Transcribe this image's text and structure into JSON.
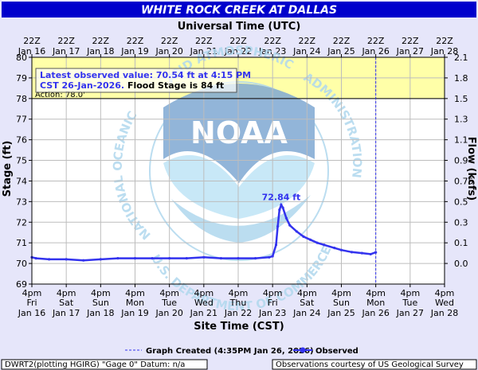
{
  "colors": {
    "background": "#e6e6fa",
    "plot_bg": "#ffffff",
    "flood_zone": "#ffffa8",
    "title_bar": "#0000cc",
    "series": "#3333ee",
    "grid": "#bdbdbd",
    "watermark": "#b0d8ee"
  },
  "watermark": {
    "logo_text": "NOAA",
    "arc_left": "NATIONAL OCEANIC",
    "arc_top": "AND ATMOSPHERIC",
    "arc_right": "ADMINISTRATION",
    "arc_bottom": "U.S. DEPARTMENT OF COMMERCE"
  },
  "chart_data": {
    "type": "line",
    "title": "WHITE ROCK CREEK AT DALLAS",
    "top_axis_title": "Universal Time (UTC)",
    "bottom_axis_title": "Site Time (CST)",
    "ylabel": "Stage (ft)",
    "ylabel_right": "Flow (kcfs)",
    "ylim": [
      69,
      80
    ],
    "y_ticks": [
      69,
      70,
      71,
      72,
      73,
      74,
      75,
      76,
      77,
      78,
      79,
      80
    ],
    "y_right_ticks": [
      {
        "stage": 70,
        "label": "0.0"
      },
      {
        "stage": 71,
        "label": "0.1"
      },
      {
        "stage": 72,
        "label": "0.3"
      },
      {
        "stage": 73,
        "label": "0.5"
      },
      {
        "stage": 74,
        "label": "0.75"
      },
      {
        "stage": 75,
        "label": "0.9"
      },
      {
        "stage": 76,
        "label": "1.1"
      },
      {
        "stage": 77,
        "label": "1.3"
      },
      {
        "stage": 78,
        "label": "1.5"
      },
      {
        "stage": 79,
        "label": "1.8"
      },
      {
        "stage": 80,
        "label": "2.1"
      }
    ],
    "x_days": 12,
    "top_ticks": [
      {
        "l1": "22Z",
        "l2": "Jan 16"
      },
      {
        "l1": "22Z",
        "l2": "Jan 17"
      },
      {
        "l1": "22Z",
        "l2": "Jan 18"
      },
      {
        "l1": "22Z",
        "l2": "Jan 19"
      },
      {
        "l1": "22Z",
        "l2": "Jan 20"
      },
      {
        "l1": "22Z",
        "l2": "Jan 21"
      },
      {
        "l1": "22Z",
        "l2": "Jan 22"
      },
      {
        "l1": "22Z",
        "l2": "Jan 23"
      },
      {
        "l1": "22Z",
        "l2": "Jan 24"
      },
      {
        "l1": "22Z",
        "l2": "Jan 25"
      },
      {
        "l1": "22Z",
        "l2": "Jan 26"
      },
      {
        "l1": "22Z",
        "l2": "Jan 27"
      },
      {
        "l1": "22Z",
        "l2": "Jan 28"
      }
    ],
    "bottom_ticks": [
      {
        "l1": "4pm",
        "l2": "Fri",
        "l3": "Jan 16"
      },
      {
        "l1": "4pm",
        "l2": "Sat",
        "l3": "Jan 17"
      },
      {
        "l1": "4pm",
        "l2": "Sun",
        "l3": "Jan 18"
      },
      {
        "l1": "4pm",
        "l2": "Mon",
        "l3": "Jan 19"
      },
      {
        "l1": "4pm",
        "l2": "Tue",
        "l3": "Jan 20"
      },
      {
        "l1": "4pm",
        "l2": "Wed",
        "l3": "Jan 21"
      },
      {
        "l1": "4pm",
        "l2": "Thu",
        "l3": "Jan 22"
      },
      {
        "l1": "4pm",
        "l2": "Fri",
        "l3": "Jan 23"
      },
      {
        "l1": "4pm",
        "l2": "Sat",
        "l3": "Jan 24"
      },
      {
        "l1": "4pm",
        "l2": "Sun",
        "l3": "Jan 25"
      },
      {
        "l1": "4pm",
        "l2": "Mon",
        "l3": "Jan 26"
      },
      {
        "l1": "4pm",
        "l2": "Tue",
        "l3": "Jan 27"
      },
      {
        "l1": "4pm",
        "l2": "Wed",
        "l3": "Jan 28"
      }
    ],
    "action_stage": 78.0,
    "action_label": "Action: 78.0'",
    "flood_zone_top": 80,
    "info_line1": "Latest observed value: 70.54 ft at 4:15 PM",
    "info_line2_blue": "CST 26-Jan-2026.",
    "info_line2_black": " Flood Stage is 84 ft",
    "peak_label": "72.84 ft",
    "peak_point": {
      "x": 7.25,
      "y": 72.84
    },
    "graph_created_day": 10.0,
    "legend_created": "Graph Created (4:35PM Jan 26, 2026)",
    "series": [
      {
        "name": "Observed",
        "x": [
          0.0,
          0.12,
          0.5,
          1.0,
          1.5,
          2.0,
          2.5,
          3.0,
          3.5,
          4.0,
          4.5,
          5.0,
          5.5,
          6.0,
          6.5,
          6.9,
          7.0,
          7.1,
          7.15,
          7.2,
          7.25,
          7.3,
          7.4,
          7.5,
          7.7,
          7.9,
          8.1,
          8.3,
          8.5,
          8.8,
          9.0,
          9.3,
          9.6,
          9.85,
          10.0
        ],
        "y": [
          70.3,
          70.25,
          70.2,
          70.2,
          70.15,
          70.2,
          70.25,
          70.25,
          70.25,
          70.25,
          70.25,
          70.3,
          70.25,
          70.25,
          70.25,
          70.3,
          70.35,
          70.9,
          71.8,
          72.6,
          72.84,
          72.7,
          72.2,
          71.85,
          71.55,
          71.3,
          71.15,
          71.0,
          70.9,
          70.75,
          70.65,
          70.55,
          70.5,
          70.45,
          70.54
        ]
      }
    ]
  },
  "legend": {
    "observed": "Observed"
  },
  "footer": {
    "left": "DWRT2(plotting HGIRG) \"Gage 0\" Datum: n/a",
    "right": "Observations courtesy of US Geological Survey"
  }
}
